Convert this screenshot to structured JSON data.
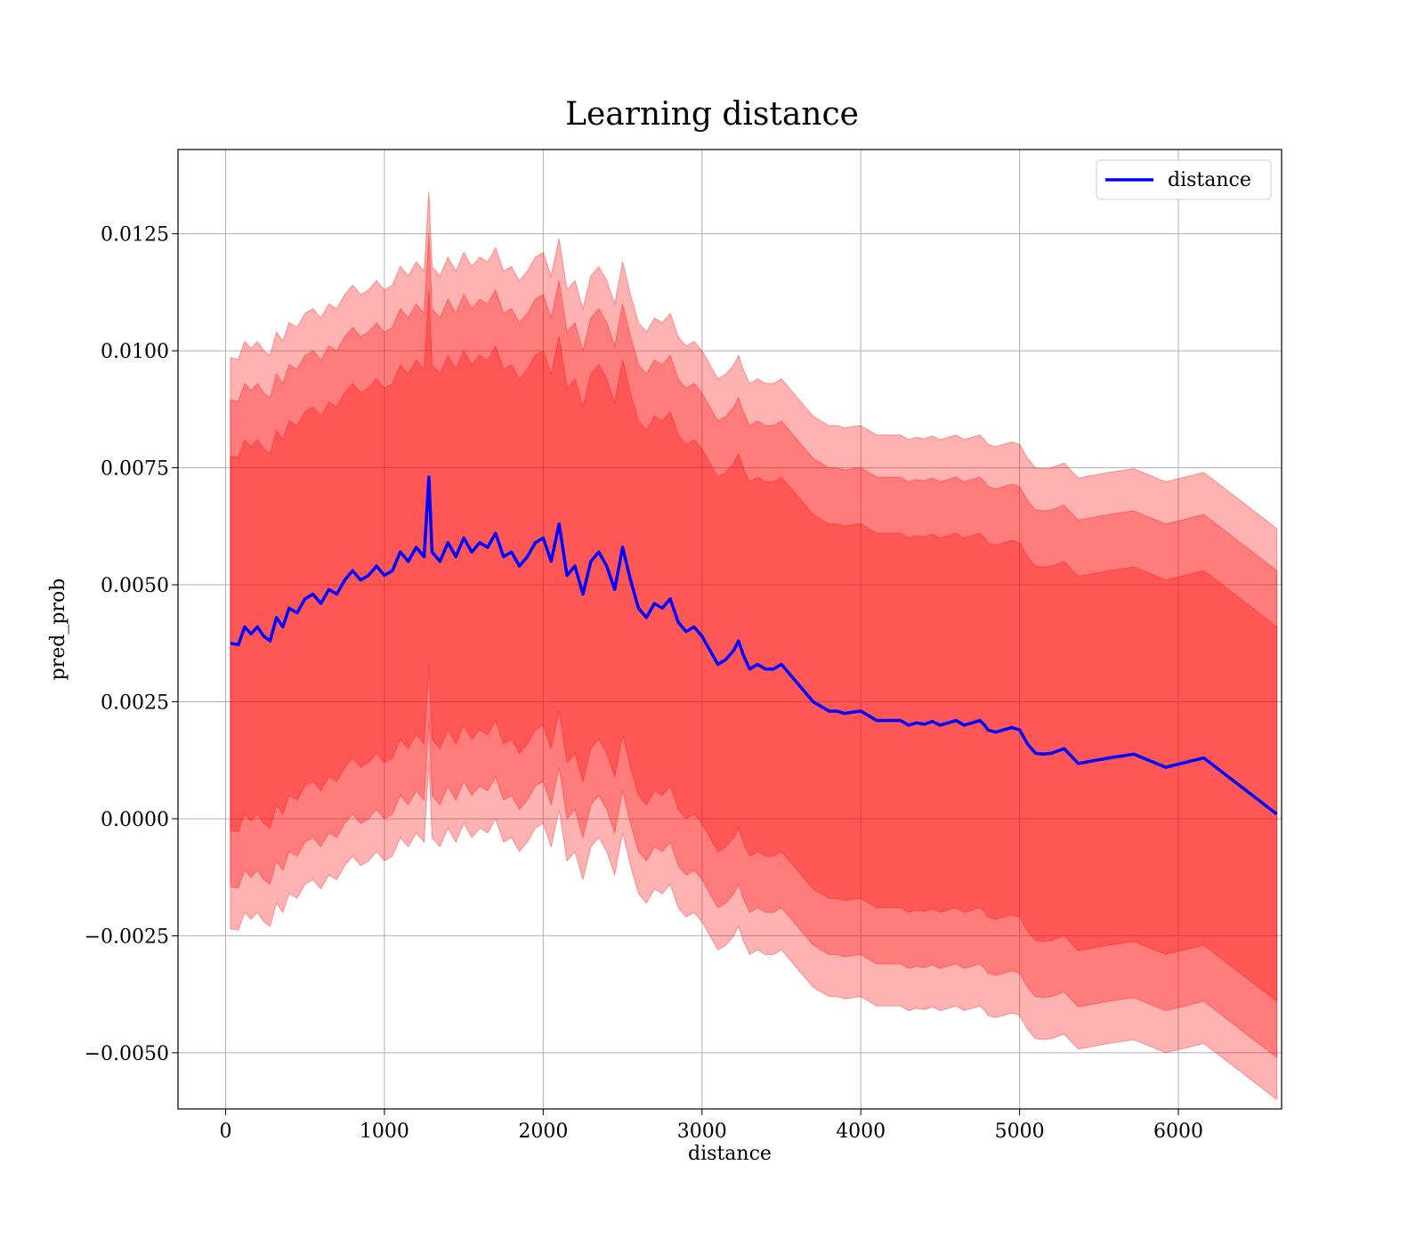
{
  "chart_data": {
    "type": "line",
    "title": "Learning distance",
    "xlabel": "distance",
    "ylabel": "pred_prob",
    "xlim": [
      -300,
      6650
    ],
    "ylim": [
      -0.0062,
      0.0143
    ],
    "xticks": [
      0,
      1000,
      2000,
      3000,
      4000,
      5000,
      6000
    ],
    "xtick_labels": [
      "0",
      "1000",
      "2000",
      "3000",
      "4000",
      "5000",
      "6000"
    ],
    "yticks": [
      -0.005,
      -0.0025,
      0.0,
      0.0025,
      0.005,
      0.0075,
      0.01,
      0.0125
    ],
    "ytick_labels": [
      "−0.0050",
      "−0.0025",
      "0.0000",
      "0.0025",
      "0.0050",
      "0.0075",
      "0.0100",
      "0.0125"
    ],
    "grid": true,
    "legend": {
      "position": "top-right",
      "entries": [
        "distance"
      ]
    },
    "colors": {
      "line": "#0000ff",
      "band": "#ff0000",
      "band_opacity": 0.3
    },
    "band_offsets": [
      0.004,
      0.0052,
      0.0061
    ],
    "series": [
      {
        "name": "distance",
        "x": [
          30,
          80,
          120,
          160,
          200,
          240,
          280,
          320,
          360,
          400,
          450,
          500,
          550,
          600,
          650,
          700,
          750,
          800,
          850,
          900,
          950,
          1000,
          1050,
          1100,
          1150,
          1200,
          1250,
          1280,
          1300,
          1350,
          1400,
          1450,
          1500,
          1550,
          1600,
          1650,
          1700,
          1750,
          1800,
          1850,
          1900,
          1950,
          2000,
          2050,
          2100,
          2150,
          2200,
          2250,
          2300,
          2350,
          2400,
          2450,
          2500,
          2550,
          2600,
          2650,
          2700,
          2750,
          2800,
          2850,
          2900,
          2950,
          3000,
          3050,
          3100,
          3150,
          3200,
          3230,
          3260,
          3300,
          3350,
          3400,
          3450,
          3500,
          3550,
          3600,
          3650,
          3700,
          3750,
          3800,
          3850,
          3900,
          3950,
          4000,
          4050,
          4100,
          4150,
          4200,
          4250,
          4300,
          4350,
          4400,
          4450,
          4500,
          4550,
          4600,
          4650,
          4700,
          4750,
          4780,
          4800,
          4850,
          4900,
          4950,
          5000,
          5050,
          5100,
          5150,
          5200,
          5280,
          5370,
          5560,
          5720,
          5920,
          6160,
          6620
        ],
        "values": [
          0.00375,
          0.00372,
          0.0041,
          0.00395,
          0.0041,
          0.0039,
          0.0038,
          0.0043,
          0.0041,
          0.0045,
          0.0044,
          0.0047,
          0.0048,
          0.0046,
          0.0049,
          0.0048,
          0.0051,
          0.0053,
          0.0051,
          0.0052,
          0.0054,
          0.0052,
          0.0053,
          0.0057,
          0.0055,
          0.0058,
          0.0056,
          0.0073,
          0.0057,
          0.0055,
          0.0059,
          0.0056,
          0.006,
          0.0057,
          0.0059,
          0.0058,
          0.0061,
          0.0056,
          0.0057,
          0.0054,
          0.0056,
          0.0059,
          0.006,
          0.0055,
          0.0063,
          0.0052,
          0.0054,
          0.0048,
          0.0055,
          0.0057,
          0.0054,
          0.0049,
          0.0058,
          0.0051,
          0.0045,
          0.0043,
          0.0046,
          0.0045,
          0.0047,
          0.0042,
          0.004,
          0.0041,
          0.0039,
          0.0036,
          0.0033,
          0.0034,
          0.0036,
          0.0038,
          0.0035,
          0.0032,
          0.0033,
          0.0032,
          0.0032,
          0.0033,
          0.0031,
          0.0029,
          0.0027,
          0.0025,
          0.0024,
          0.0023,
          0.0023,
          0.00225,
          0.00228,
          0.0023,
          0.0022,
          0.0021,
          0.0021,
          0.0021,
          0.0021,
          0.002,
          0.00205,
          0.00202,
          0.00208,
          0.002,
          0.00205,
          0.0021,
          0.002,
          0.00205,
          0.0021,
          0.002,
          0.0019,
          0.00185,
          0.0019,
          0.00195,
          0.0019,
          0.0016,
          0.0014,
          0.00138,
          0.0014,
          0.0015,
          0.00118,
          0.0013,
          0.00138,
          0.0011,
          0.0013,
          0.0001
        ]
      }
    ]
  }
}
